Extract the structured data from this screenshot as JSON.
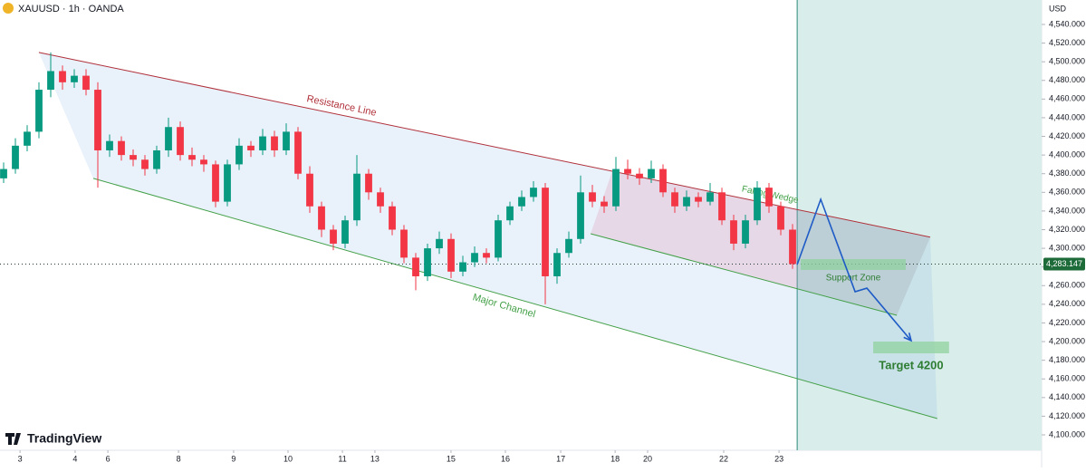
{
  "chart_data": {
    "type": "candlestick",
    "title": "XAUUSD · 1h · OANDA",
    "currency": "USD",
    "brand": "TradingView",
    "up_color": "#089981",
    "down_color": "#f23645",
    "grid": false,
    "xlim": [
      0,
      442.3
    ],
    "ylim": [
      4083.5,
      4566.2
    ],
    "xticks": [
      {
        "value": 8.5,
        "label": "3"
      },
      {
        "value": 31.9,
        "label": "4"
      },
      {
        "value": 45.8,
        "label": "6"
      },
      {
        "value": 75.8,
        "label": "8"
      },
      {
        "value": 99.2,
        "label": "9"
      },
      {
        "value": 122.3,
        "label": "10"
      },
      {
        "value": 145.4,
        "label": "11"
      },
      {
        "value": 159.2,
        "label": "13"
      },
      {
        "value": 191.5,
        "label": "15"
      },
      {
        "value": 214.6,
        "label": "16"
      },
      {
        "value": 238.1,
        "label": "17"
      },
      {
        "value": 261.2,
        "label": "18"
      },
      {
        "value": 275,
        "label": "20"
      },
      {
        "value": 307.3,
        "label": "22"
      },
      {
        "value": 330.8,
        "label": "23"
      }
    ],
    "yticks": [
      {
        "value": 4540,
        "label": "4,540.000"
      },
      {
        "value": 4520,
        "label": "4,520.000"
      },
      {
        "value": 4500,
        "label": "4,500.000"
      },
      {
        "value": 4480,
        "label": "4,480.000"
      },
      {
        "value": 4460,
        "label": "4,460.000"
      },
      {
        "value": 4440,
        "label": "4,440.000"
      },
      {
        "value": 4420,
        "label": "4,420.000"
      },
      {
        "value": 4400,
        "label": "4,400.000"
      },
      {
        "value": 4380,
        "label": "4,380.000"
      },
      {
        "value": 4360,
        "label": "4,360.000"
      },
      {
        "value": 4340,
        "label": "4,340.000"
      },
      {
        "value": 4320,
        "label": "4,320.000"
      },
      {
        "value": 4300,
        "label": "4,300.000"
      },
      {
        "value": 4280,
        "label": "4,280.000"
      },
      {
        "value": 4260,
        "label": "4,260.000"
      },
      {
        "value": 4240,
        "label": "4,240.000"
      },
      {
        "value": 4220,
        "label": "4,220.000"
      },
      {
        "value": 4200,
        "label": "4,200.000"
      },
      {
        "value": 4180,
        "label": "4,180.000"
      },
      {
        "value": 4160,
        "label": "4,160.000"
      },
      {
        "value": 4140,
        "label": "4,140.000"
      },
      {
        "value": 4120,
        "label": "4,120.000"
      },
      {
        "value": 4100,
        "label": "4,100.000"
      }
    ],
    "x": [
      0,
      5,
      10,
      15,
      20,
      25,
      30,
      35,
      40,
      45,
      50,
      55,
      60,
      65,
      70,
      75,
      80,
      85,
      90,
      95,
      100,
      105,
      110,
      115,
      120,
      125,
      130,
      135,
      140,
      145,
      150,
      155,
      160,
      165,
      170,
      175,
      180,
      185,
      190,
      195,
      200,
      205,
      210,
      215,
      220,
      225,
      230,
      235,
      240,
      245,
      250,
      255,
      260,
      265,
      270,
      275,
      280,
      285,
      290,
      295,
      300,
      305,
      310,
      315,
      320,
      325,
      330,
      335
    ],
    "open": [
      4375,
      4385,
      4410,
      4425,
      4470,
      4490,
      4478,
      4485,
      4470,
      4405,
      4415,
      4400,
      4395,
      4385,
      4405,
      4430,
      4400,
      4395,
      4390,
      4350,
      4390,
      4410,
      4405,
      4420,
      4405,
      4425,
      4380,
      4345,
      4320,
      4305,
      4330,
      4380,
      4360,
      4345,
      4320,
      4290,
      4270,
      4300,
      4310,
      4275,
      4285,
      4295,
      4290,
      4330,
      4345,
      4355,
      4365,
      4270,
      4295,
      4310,
      4360,
      4350,
      4345,
      4385,
      4380,
      4375,
      4385,
      4360,
      4345,
      4355,
      4350,
      4360,
      4330,
      4305,
      4330,
      4365,
      4345,
      4320
    ],
    "high": [
      4392,
      4418,
      4432,
      4478,
      4510,
      4496,
      4492,
      4492,
      4478,
      4422,
      4420,
      4406,
      4400,
      4410,
      4440,
      4436,
      4408,
      4400,
      4394,
      4395,
      4418,
      4415,
      4428,
      4426,
      4434,
      4430,
      4388,
      4350,
      4325,
      4335,
      4400,
      4385,
      4365,
      4350,
      4325,
      4295,
      4305,
      4318,
      4316,
      4292,
      4302,
      4300,
      4336,
      4350,
      4362,
      4372,
      4370,
      4300,
      4318,
      4378,
      4368,
      4356,
      4398,
      4395,
      4386,
      4394,
      4390,
      4365,
      4362,
      4360,
      4370,
      4365,
      4336,
      4336,
      4372,
      4370,
      4350,
      4326
    ],
    "low": [
      4370,
      4380,
      4404,
      4418,
      4462,
      4470,
      4472,
      4464,
      4365,
      4398,
      4394,
      4388,
      4378,
      4380,
      4398,
      4394,
      4388,
      4382,
      4344,
      4345,
      4384,
      4398,
      4400,
      4398,
      4400,
      4374,
      4338,
      4312,
      4298,
      4300,
      4324,
      4352,
      4338,
      4314,
      4284,
      4255,
      4265,
      4294,
      4268,
      4270,
      4280,
      4284,
      4286,
      4325,
      4340,
      4350,
      4240,
      4262,
      4290,
      4305,
      4344,
      4338,
      4340,
      4374,
      4368,
      4370,
      4355,
      4338,
      4340,
      4344,
      4346,
      4325,
      4298,
      4300,
      4325,
      4338,
      4314,
      4278
    ],
    "close": [
      4385,
      4410,
      4425,
      4470,
      4490,
      4478,
      4485,
      4470,
      4405,
      4415,
      4400,
      4395,
      4385,
      4405,
      4430,
      4400,
      4395,
      4390,
      4350,
      4390,
      4410,
      4405,
      4420,
      4405,
      4425,
      4380,
      4345,
      4320,
      4305,
      4330,
      4380,
      4360,
      4345,
      4320,
      4290,
      4270,
      4300,
      4310,
      4275,
      4285,
      4295,
      4290,
      4330,
      4345,
      4355,
      4365,
      4270,
      4295,
      4310,
      4360,
      4350,
      4345,
      4385,
      4380,
      4375,
      4385,
      4360,
      4345,
      4355,
      4350,
      4360,
      4330,
      4305,
      4330,
      4365,
      4345,
      4320,
      4283.147
    ],
    "last_price": {
      "value": 4283.147,
      "label": "4,283.147"
    },
    "last_price_color": "#1e6b3a",
    "annotations": [
      {
        "label": "Resistance Line",
        "color": "#b0303a",
        "x": [
          16.5,
          395
        ],
        "y": [
          4510,
          4312
        ]
      },
      {
        "label": "Major Channel",
        "color": "#43a047",
        "x": [
          39.6,
          398
        ],
        "y": [
          4375,
          4117.5
        ]
      },
      {
        "label": "Falling Wedge",
        "color": "#43a047",
        "x": [
          250.8,
          380.8
        ],
        "y": [
          4315.6,
          4228.2
        ]
      }
    ],
    "forecast_start": 338.5,
    "projection": {
      "color": "#1e5bc6",
      "x": [
        338.5,
        348.5,
        363.1,
        368.1,
        386.9
      ],
      "y": [
        4282.6,
        4352.5,
        4253.5,
        4257.3,
        4201
      ]
    },
    "zones": [
      {
        "label": "Support Zone",
        "color": "#8fd19e",
        "x": [
          340,
          384.6
        ],
        "y": [
          4276.8,
          4288.4
        ]
      },
      {
        "label": "Target 4200",
        "color": "#8fd19e",
        "x": [
          370.8,
          403
        ],
        "y": [
          4187.4,
          4200
        ]
      }
    ]
  }
}
